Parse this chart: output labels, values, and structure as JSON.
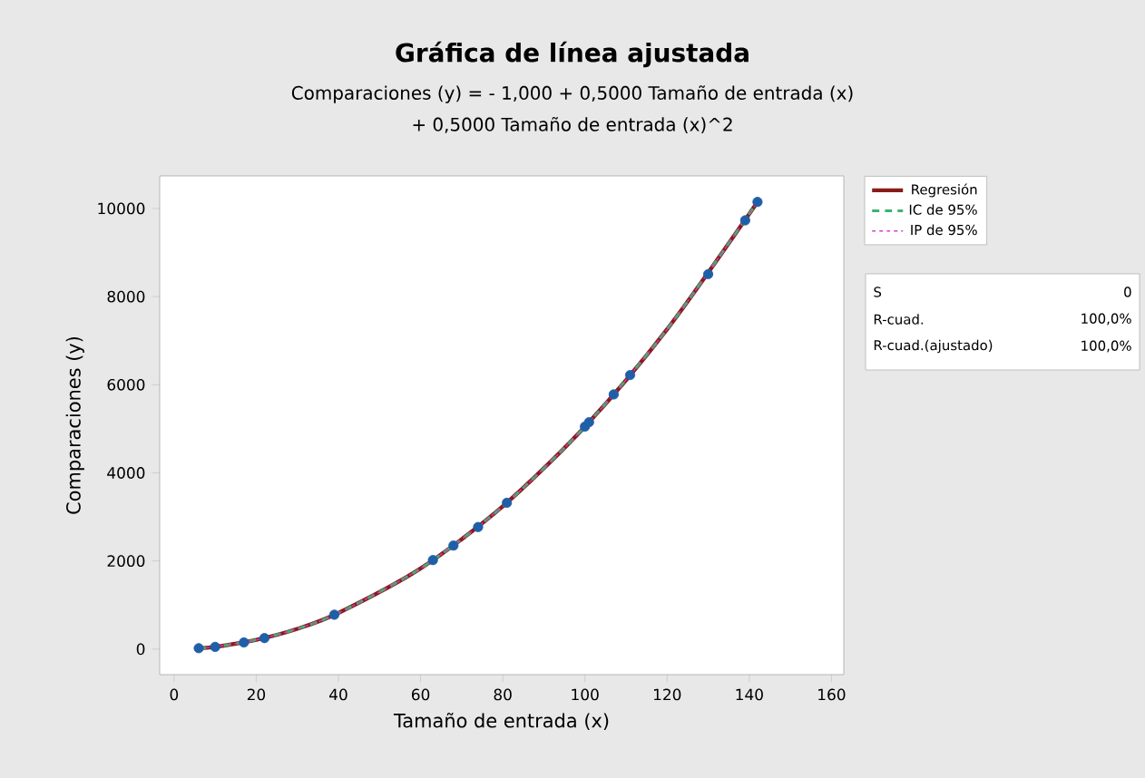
{
  "chart_data": {
    "type": "scatter",
    "title": "Gráfica de línea ajustada",
    "subtitle": "Comparaciones (y) = - 1,000 + 0,5000 Tamaño de entrada (x)",
    "annotations": [
      "+ 0,5000 Tamaño de entrada (x)^2",
      "S",
      "0",
      "R-cuad.",
      "100,0%",
      "R-cuad.(ajustado)",
      "100,0%"
    ],
    "xlabel": "Tamaño de entrada (x)",
    "ylabel": "Comparaciones (y)",
    "x": [
      6,
      10,
      17,
      22,
      39,
      63,
      68,
      74,
      81,
      100,
      101,
      107,
      111,
      130,
      139,
      142
    ],
    "series": [
      {
        "color": "#1f5fa8",
        "marker": "circle",
        "values": [
          20,
          50,
          150,
          250,
          780,
          2020,
          2350,
          2770,
          3320,
          5050,
          5150,
          5780,
          6220,
          8510,
          9730,
          10150
        ]
      },
      {
        "type": "line",
        "name": "Regresión",
        "color": "#8b1a1a",
        "line_style": "solid",
        "x": [
          6,
          10,
          20,
          30,
          40,
          60,
          80,
          100,
          120,
          142
        ],
        "values": [
          20,
          50,
          210,
          460,
          820,
          1830,
          3240,
          5050,
          7260,
          10150
        ]
      },
      {
        "type": "line",
        "name": "IC de 95%",
        "color": "#3cb371",
        "line_style": "dashed",
        "x": [
          6,
          10,
          20,
          30,
          40,
          60,
          80,
          100,
          120,
          142
        ],
        "values": [
          20,
          50,
          210,
          460,
          820,
          1830,
          3240,
          5050,
          7260,
          10150
        ]
      },
      {
        "type": "line",
        "name": "IP de 95%",
        "color": "#cc44cc",
        "line_style": "dotted",
        "x": [
          6,
          10,
          20,
          30,
          40,
          60,
          80,
          100,
          120,
          142
        ],
        "values": [
          20,
          50,
          210,
          460,
          820,
          1830,
          3240,
          5050,
          7260,
          10150
        ]
      }
    ],
    "xlim": [
      -3.5,
      163
    ],
    "ylim": [
      -580,
      10740
    ],
    "xticks": [
      0,
      20,
      40,
      60,
      80,
      100,
      120,
      140,
      160
    ],
    "yticks": [
      0,
      2000,
      4000,
      6000,
      8000,
      10000
    ],
    "grid": false,
    "legend": "top right"
  }
}
